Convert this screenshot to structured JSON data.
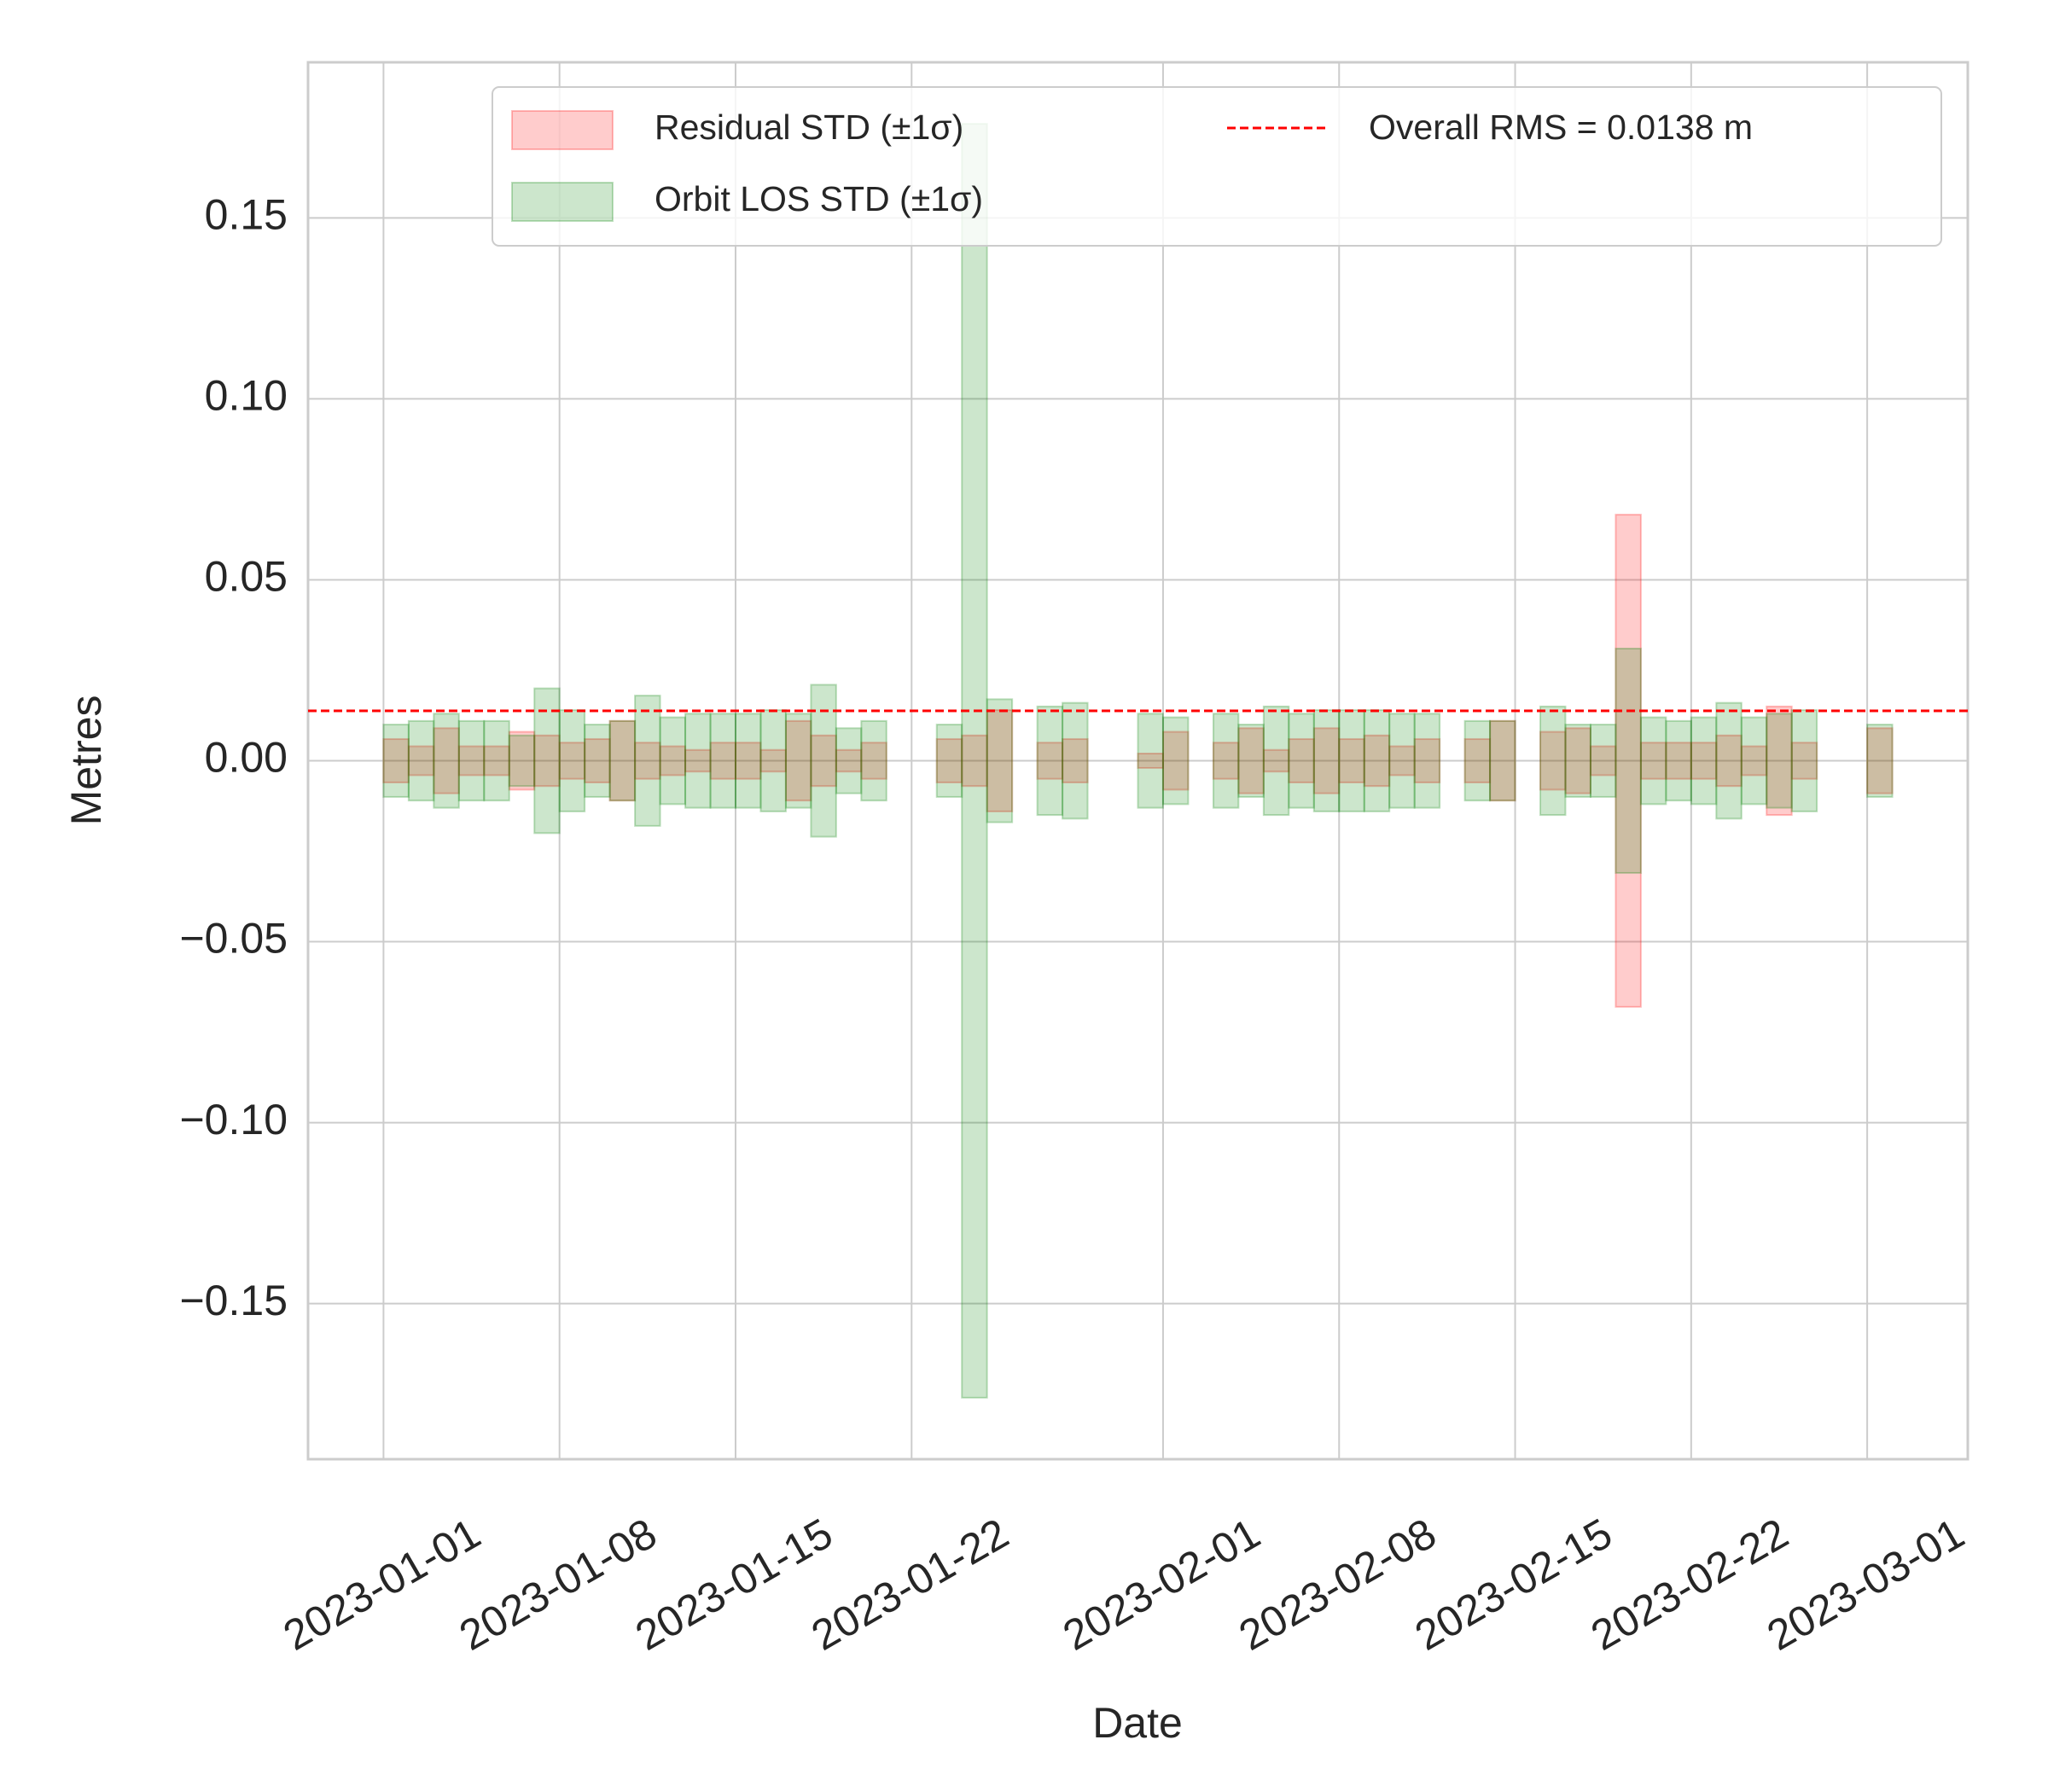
{
  "chart_data": {
    "type": "bar",
    "xlabel": "Date",
    "ylabel": "Metres",
    "x": [
      "2023-01-01",
      "2023-01-02",
      "2023-01-03",
      "2023-01-04",
      "2023-01-05",
      "2023-01-06",
      "2023-01-07",
      "2023-01-08",
      "2023-01-09",
      "2023-01-10",
      "2023-01-11",
      "2023-01-12",
      "2023-01-13",
      "2023-01-14",
      "2023-01-15",
      "2023-01-16",
      "2023-01-17",
      "2023-01-18",
      "2023-01-19",
      "2023-01-20",
      "2023-01-23",
      "2023-01-24",
      "2023-01-25",
      "2023-01-27",
      "2023-01-28",
      "2023-01-31",
      "2023-02-01",
      "2023-02-03",
      "2023-02-04",
      "2023-02-05",
      "2023-02-06",
      "2023-02-07",
      "2023-02-08",
      "2023-02-09",
      "2023-02-10",
      "2023-02-11",
      "2023-02-13",
      "2023-02-14",
      "2023-02-16",
      "2023-02-17",
      "2023-02-18",
      "2023-02-19",
      "2023-02-20",
      "2023-02-21",
      "2023-02-22",
      "2023-02-23",
      "2023-02-24",
      "2023-02-25",
      "2023-02-26",
      "2023-03-01"
    ],
    "series": [
      {
        "name": "Residual STD (±1σ)",
        "color": "red",
        "values": [
          0.006,
          0.004,
          0.009,
          0.004,
          0.004,
          0.008,
          0.007,
          0.005,
          0.006,
          0.011,
          0.005,
          0.004,
          0.003,
          0.005,
          0.005,
          0.003,
          0.011,
          0.007,
          0.003,
          0.005,
          0.006,
          0.007,
          0.014,
          0.005,
          0.006,
          0.002,
          0.008,
          0.005,
          0.009,
          0.003,
          0.006,
          0.009,
          0.006,
          0.007,
          0.004,
          0.006,
          0.006,
          0.011,
          0.008,
          0.009,
          0.004,
          0.068,
          0.005,
          0.005,
          0.005,
          0.007,
          0.004,
          0.015,
          0.005,
          0.009
        ]
      },
      {
        "name": "Orbit LOS STD (±1σ)",
        "color": "green",
        "values": [
          0.01,
          0.011,
          0.013,
          0.011,
          0.011,
          0.007,
          0.02,
          0.014,
          0.01,
          0.011,
          0.018,
          0.012,
          0.013,
          0.013,
          0.013,
          0.014,
          0.013,
          0.021,
          0.009,
          0.011,
          0.01,
          0.176,
          0.017,
          0.015,
          0.016,
          0.013,
          0.012,
          0.013,
          0.01,
          0.015,
          0.013,
          0.014,
          0.014,
          0.014,
          0.013,
          0.013,
          0.011,
          0.011,
          0.015,
          0.01,
          0.01,
          0.031,
          0.012,
          0.011,
          0.012,
          0.016,
          0.012,
          0.013,
          0.014,
          0.01
        ]
      }
    ],
    "rms": {
      "label": "Overall RMS = 0.0138 m",
      "value": 0.0138,
      "color": "red"
    },
    "xlim": [
      "2022-12-29",
      "2023-03-05"
    ],
    "xticks": [
      "2023-01-01",
      "2023-01-08",
      "2023-01-15",
      "2023-01-22",
      "2023-02-01",
      "2023-02-08",
      "2023-02-15",
      "2023-02-22",
      "2023-03-01"
    ],
    "ylim": [
      -0.193,
      0.193
    ],
    "yticks": [
      {
        "value": -0.15,
        "label": "−0.15"
      },
      {
        "value": -0.1,
        "label": "−0.10"
      },
      {
        "value": -0.05,
        "label": "−0.05"
      },
      {
        "value": 0,
        "label": "0.00"
      },
      {
        "value": 0.05,
        "label": "0.05"
      },
      {
        "value": 0.1,
        "label": "0.10"
      },
      {
        "value": 0.15,
        "label": "0.15"
      }
    ],
    "grid": true,
    "legend": "upper right"
  }
}
